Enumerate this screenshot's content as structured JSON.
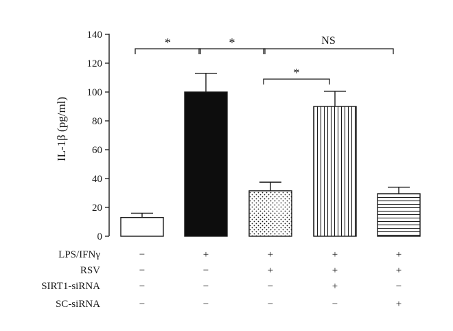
{
  "chart_data": {
    "type": "bar",
    "title": "",
    "xlabel": "",
    "ylabel": "IL-1β (pg/ml)",
    "ylim": [
      0,
      140
    ],
    "yticks": [
      0,
      20,
      40,
      60,
      80,
      100,
      120,
      140
    ],
    "grid": false,
    "values": [
      13,
      100,
      31.5,
      90,
      29.5
    ],
    "errors": [
      3,
      13,
      6,
      10.5,
      4.5
    ],
    "bar_patterns": [
      "open",
      "solid",
      "dotted",
      "vertical-stripes",
      "horizontal-stripes"
    ],
    "condition_rows": [
      {
        "label": "LPS/IFNγ",
        "signs": [
          "−",
          "+",
          "+",
          "+",
          "+"
        ]
      },
      {
        "label": "RSV",
        "signs": [
          "−",
          "−",
          "+",
          "+",
          "+"
        ]
      },
      {
        "label": "SIRT1-siRNA",
        "signs": [
          "−",
          "−",
          "−",
          "+",
          "−"
        ]
      },
      {
        "label": "SC-siRNA",
        "signs": [
          "−",
          "−",
          "−",
          "−",
          "+"
        ]
      }
    ],
    "comparisons": [
      {
        "from": 0,
        "to": 1,
        "label": "*",
        "level": 130
      },
      {
        "from": 1,
        "to": 2,
        "label": "*",
        "level": 130
      },
      {
        "from": 2,
        "to": 4,
        "label": "NS",
        "level": 130
      },
      {
        "from": 2,
        "to": 3,
        "label": "*",
        "level": 109
      }
    ]
  },
  "colors": {
    "ink": "#1a1a1a",
    "bar_fill_open": "#ffffff",
    "bar_fill_solid": "#0d0d0d"
  }
}
